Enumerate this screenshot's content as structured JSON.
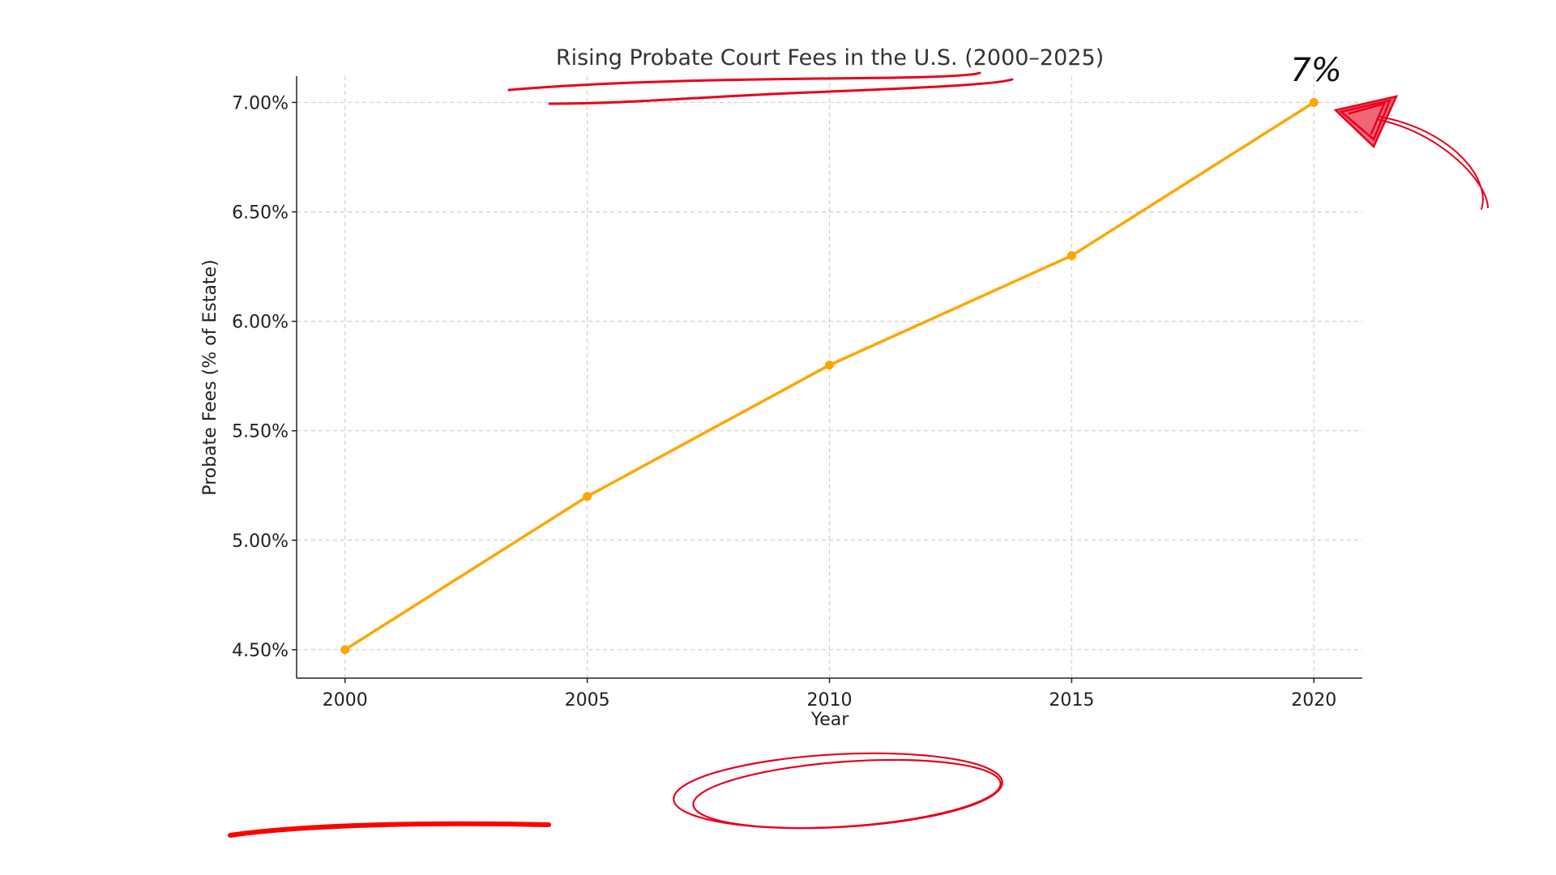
{
  "chart_data": {
    "type": "line",
    "title": "Rising Probate Court Fees in the U.S. (2000–2025)",
    "xlabel": "Year",
    "ylabel": "Probate Fees (% of Estate)",
    "x": [
      2000,
      2005,
      2010,
      2015,
      2020
    ],
    "series": [
      {
        "values": [
          4.5,
          5.2,
          5.8,
          6.3,
          7.0
        ],
        "color": "#FFA500"
      }
    ],
    "xticks": [
      "2000",
      "2005",
      "2010",
      "2015",
      "2020"
    ],
    "yticks": [
      4.5,
      5.0,
      5.5,
      6.0,
      6.5,
      7.0
    ],
    "ytick_labels": [
      "4.50%",
      "5.00%",
      "5.50%",
      "6.00%",
      "6.50%",
      "7.00%"
    ],
    "xlim": [
      1999,
      2021
    ],
    "ylim": [
      4.37,
      7.12
    ],
    "grid": true,
    "marker": "circle"
  },
  "annotations": {
    "callout_text": "7%",
    "ink_color": "#E8001C"
  }
}
